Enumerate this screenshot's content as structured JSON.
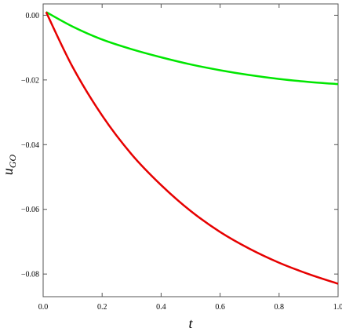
{
  "chart_data": {
    "type": "line",
    "title": "",
    "xlabel": "t",
    "ylabel_main": "u",
    "ylabel_sub": "GO",
    "xlim": [
      0.0,
      1.0
    ],
    "ylim": [
      -0.087,
      0.0035
    ],
    "grid": false,
    "legend": "none",
    "xticks": [
      {
        "value": 0.0,
        "label": "0.0"
      },
      {
        "value": 0.2,
        "label": "0.2"
      },
      {
        "value": 0.4,
        "label": "0.4"
      },
      {
        "value": 0.6,
        "label": "0.6"
      },
      {
        "value": 0.8,
        "label": "0.8"
      },
      {
        "value": 1.0,
        "label": "1.0"
      }
    ],
    "yticks": [
      {
        "value": 0.0,
        "label": "0.00"
      },
      {
        "value": -0.02,
        "label": "−0.02"
      },
      {
        "value": -0.04,
        "label": "−0.04"
      },
      {
        "value": -0.06,
        "label": "−0.06"
      },
      {
        "value": -0.08,
        "label": "−0.08"
      }
    ],
    "series": [
      {
        "color": "#00e600",
        "x": [
          0.01,
          0.1,
          0.2,
          0.3,
          0.4,
          0.5,
          0.6,
          0.7,
          0.8,
          0.9,
          1.0
        ],
        "y": [
          0.001,
          -0.0035,
          -0.0075,
          -0.0105,
          -0.013,
          -0.0152,
          -0.017,
          -0.0185,
          -0.0197,
          -0.0206,
          -0.0213
        ]
      },
      {
        "color": "#e60000",
        "x": [
          0.01,
          0.1,
          0.2,
          0.3,
          0.4,
          0.5,
          0.6,
          0.7,
          0.8,
          0.9,
          1.0
        ],
        "y": [
          0.001,
          -0.016,
          -0.031,
          -0.043,
          -0.0525,
          -0.0605,
          -0.067,
          -0.0722,
          -0.0765,
          -0.08,
          -0.083
        ]
      }
    ]
  }
}
